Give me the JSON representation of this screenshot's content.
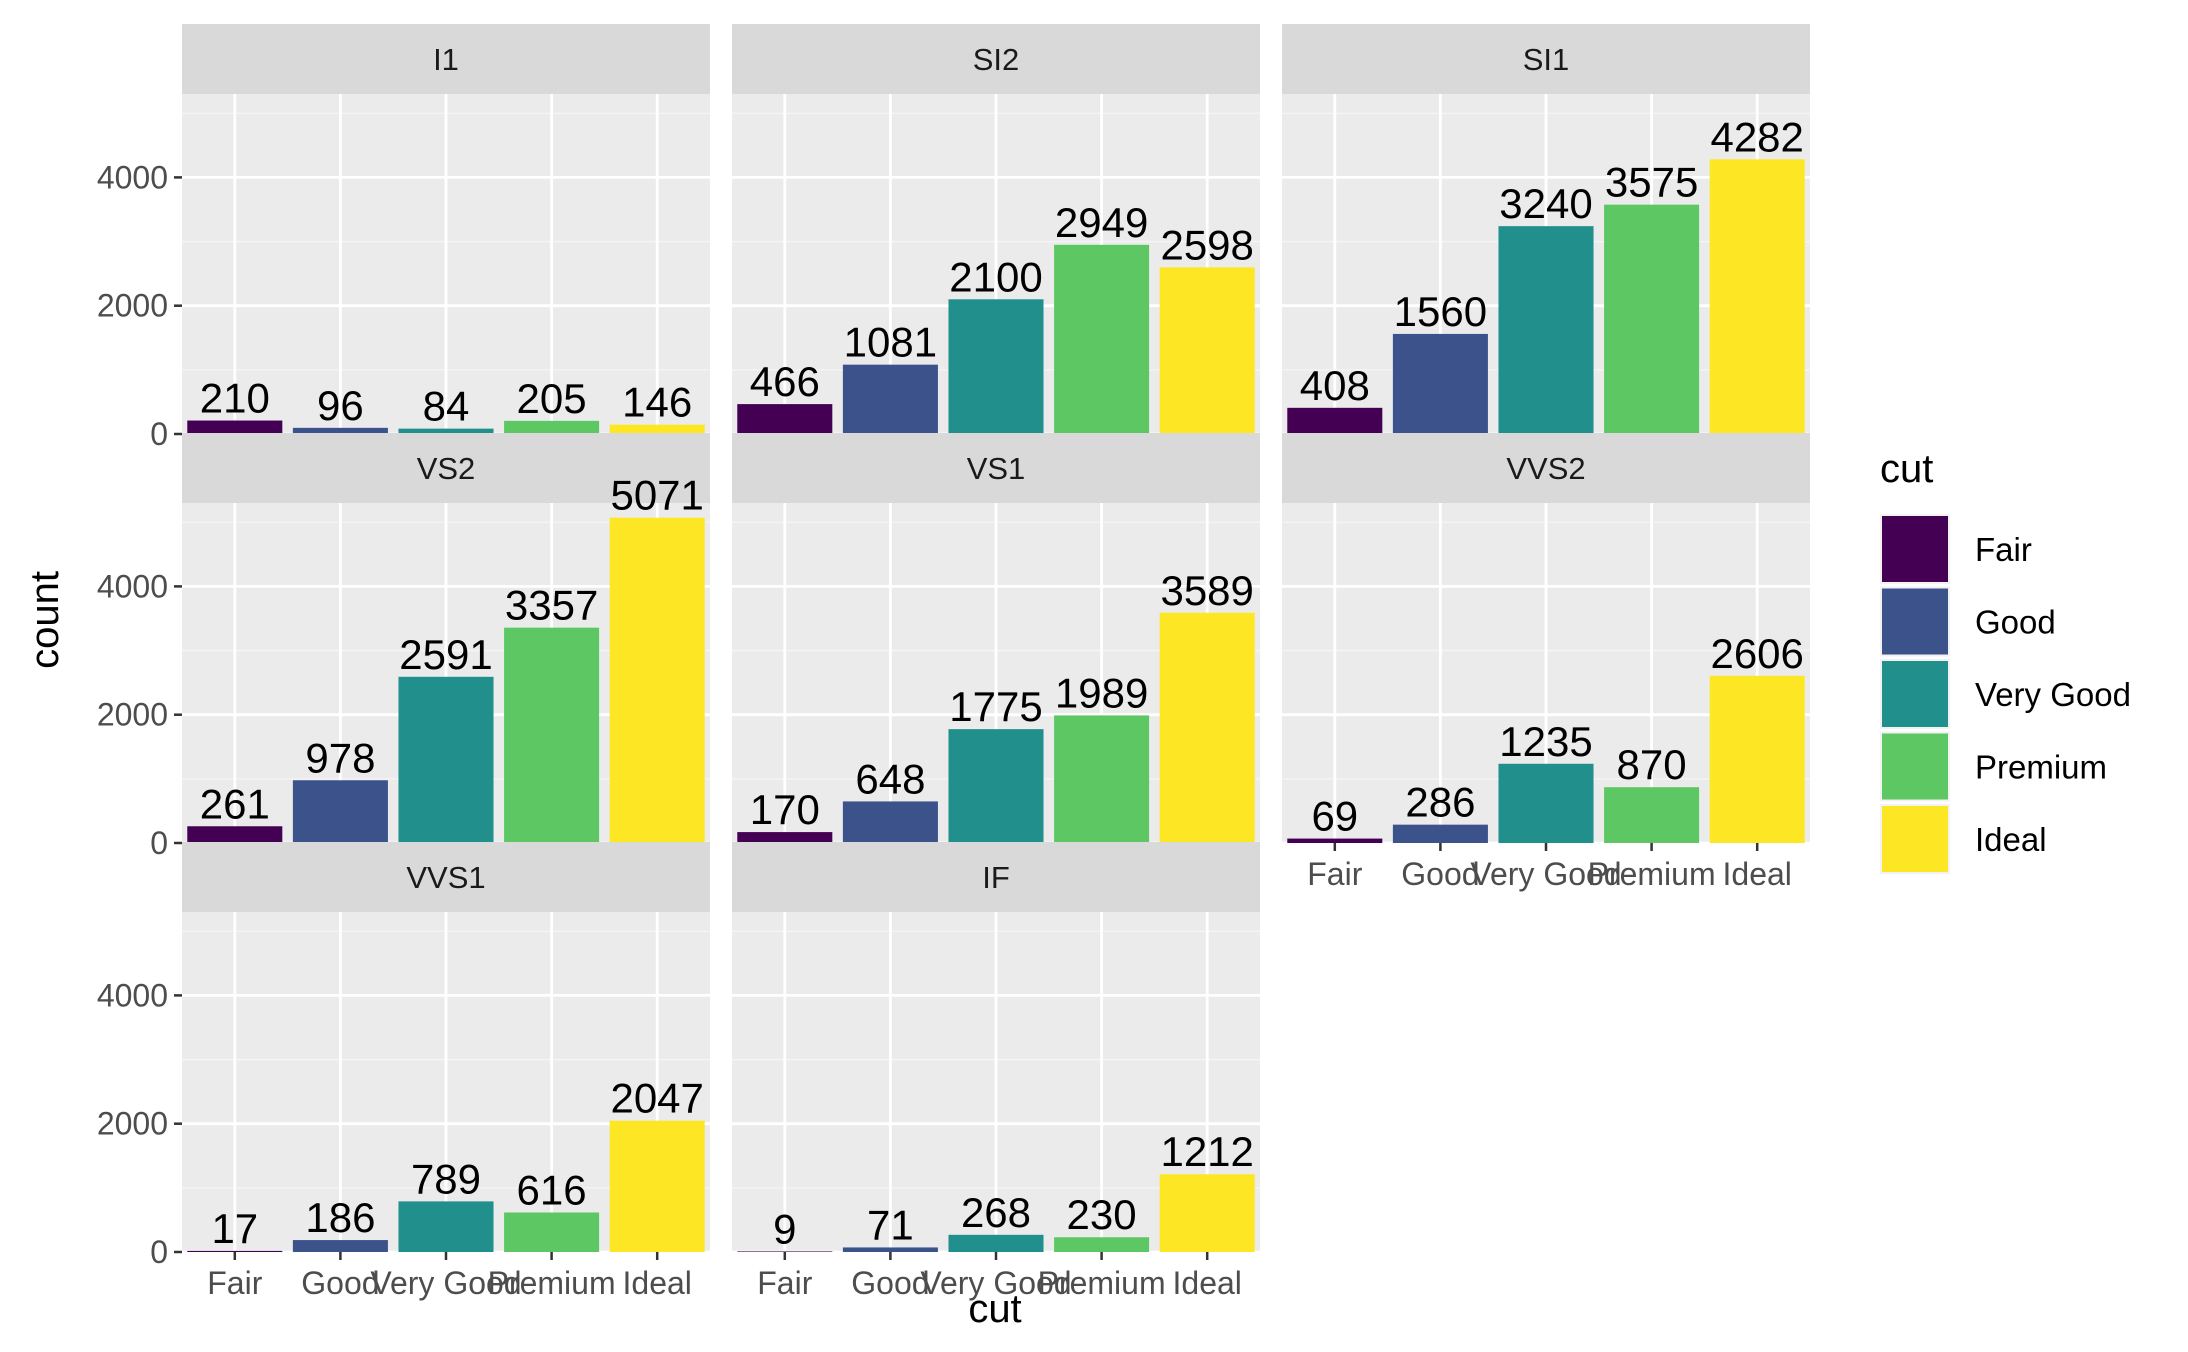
{
  "chart_data": {
    "type": "bar",
    "layout": "facet_wrap",
    "xlabel": "cut",
    "ylabel": "count",
    "categories": [
      "Fair",
      "Good",
      "Very Good",
      "Premium",
      "Ideal"
    ],
    "y_ticks": [
      0,
      2000,
      4000
    ],
    "ylim": [
      0,
      5300
    ],
    "grid": true,
    "legend": {
      "title": "cut",
      "position": "right",
      "entries": [
        "Fair",
        "Good",
        "Very Good",
        "Premium",
        "Ideal"
      ]
    },
    "colors": [
      "#440154",
      "#3B528B",
      "#21908C",
      "#5DC863",
      "#FDE725"
    ],
    "panels": [
      {
        "title": "I1",
        "values": [
          210,
          96,
          84,
          205,
          146
        ]
      },
      {
        "title": "SI2",
        "values": [
          466,
          1081,
          2100,
          2949,
          2598
        ]
      },
      {
        "title": "SI1",
        "values": [
          408,
          1560,
          3240,
          3575,
          4282
        ]
      },
      {
        "title": "VS2",
        "values": [
          261,
          978,
          2591,
          3357,
          5071
        ]
      },
      {
        "title": "VS1",
        "values": [
          170,
          648,
          1775,
          1989,
          3589
        ]
      },
      {
        "title": "VVS2",
        "values": [
          69,
          286,
          1235,
          870,
          2606
        ]
      },
      {
        "title": "VVS1",
        "values": [
          17,
          186,
          789,
          616,
          2047
        ]
      },
      {
        "title": "IF",
        "values": [
          9,
          71,
          268,
          230,
          1212
        ]
      }
    ]
  }
}
